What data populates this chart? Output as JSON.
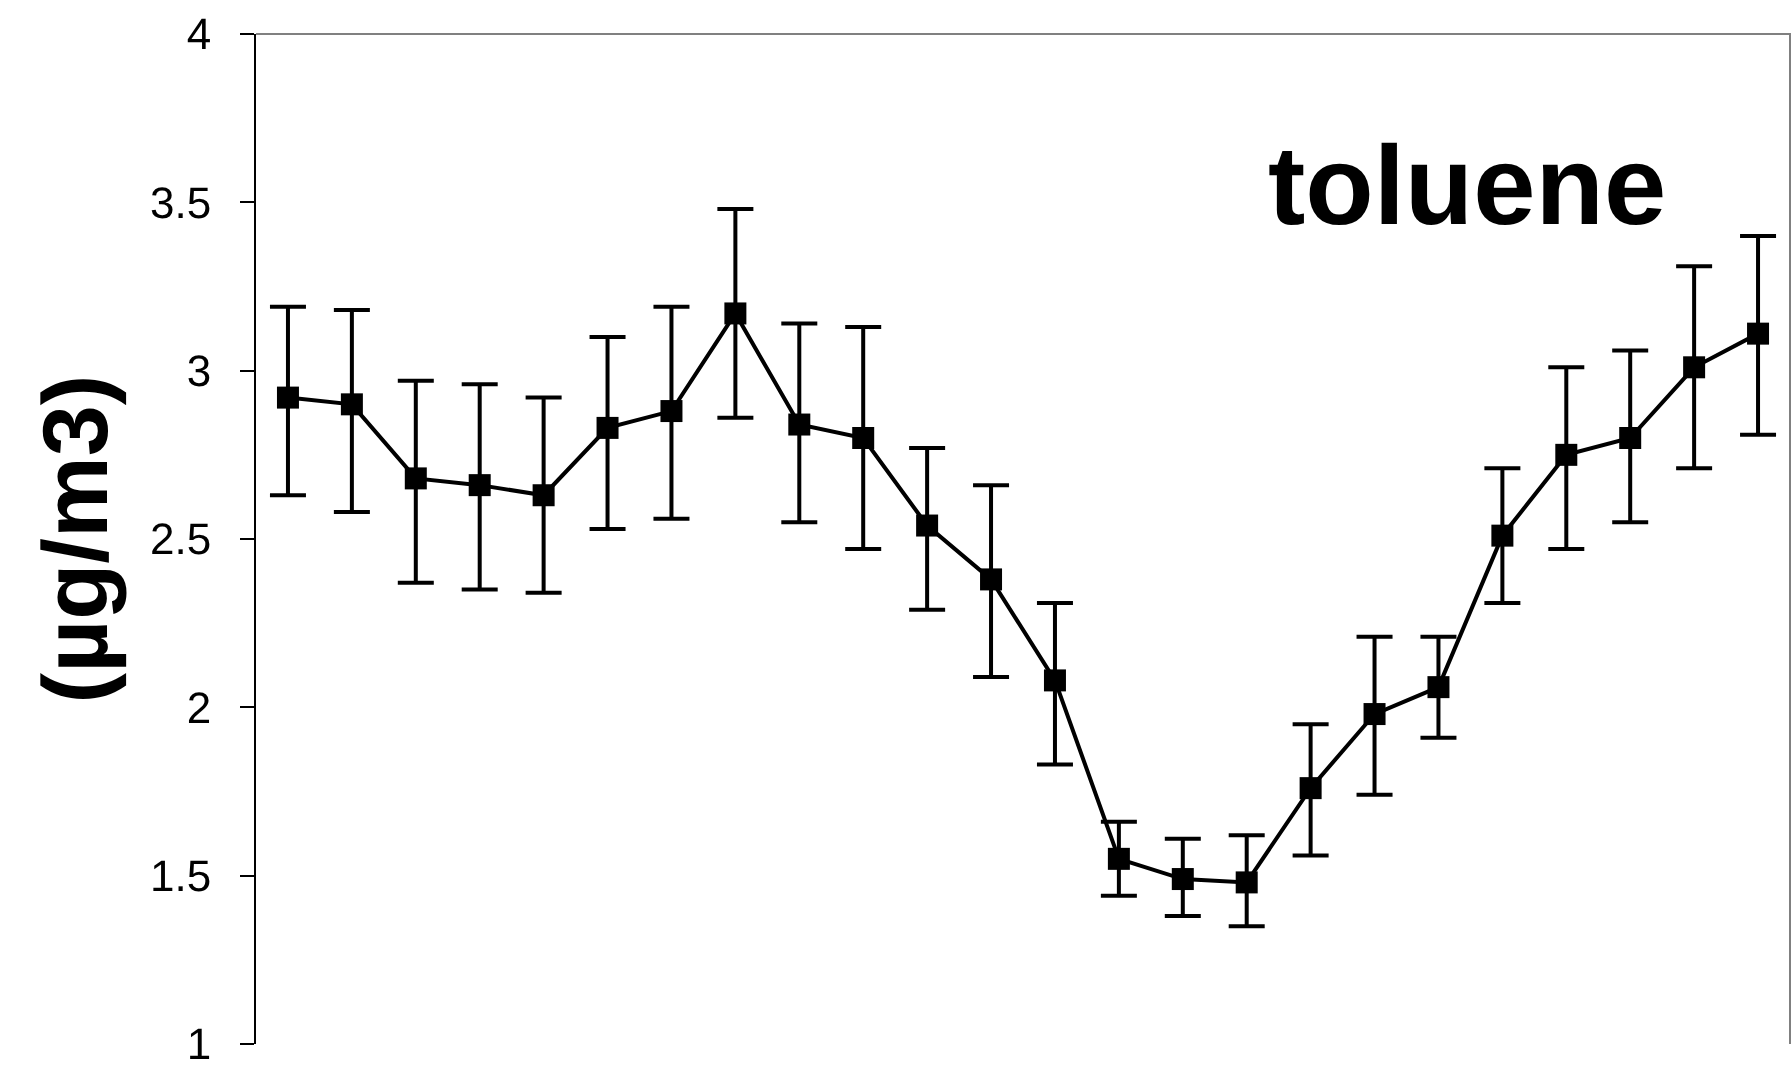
{
  "chart_data": {
    "type": "line",
    "ylabel": "(µg/m3)",
    "annotations": [
      "toluene"
    ],
    "categories": [
      null,
      null,
      null,
      null,
      null,
      null,
      null,
      null,
      null,
      null,
      null,
      null,
      null,
      null,
      null,
      null,
      null,
      null,
      null,
      null,
      null,
      null,
      null,
      null
    ],
    "series": [
      {
        "color": "#000000",
        "values": [
          2.92,
          2.9,
          2.68,
          2.66,
          2.63,
          2.83,
          2.88,
          3.17,
          2.84,
          2.8,
          2.54,
          2.38,
          2.08,
          1.55,
          1.49,
          1.48,
          1.76,
          1.98,
          2.06,
          2.51,
          2.75,
          2.8,
          3.01,
          3.11
        ],
        "errors": [
          [
            2.63,
            3.19
          ],
          [
            2.58,
            3.18
          ],
          [
            2.37,
            2.97
          ],
          [
            2.35,
            2.96
          ],
          [
            2.34,
            2.92
          ],
          [
            2.53,
            3.1
          ],
          [
            2.56,
            3.19
          ],
          [
            2.86,
            3.48
          ],
          [
            2.55,
            3.14
          ],
          [
            2.47,
            3.13
          ],
          [
            2.29,
            2.77
          ],
          [
            2.09,
            2.66
          ],
          [
            1.83,
            2.31
          ],
          [
            1.44,
            1.66
          ],
          [
            1.38,
            1.61
          ],
          [
            1.35,
            1.62
          ],
          [
            1.56,
            1.95
          ],
          [
            1.74,
            2.21
          ],
          [
            1.91,
            2.21
          ],
          [
            2.31,
            2.71
          ],
          [
            2.47,
            3.01
          ],
          [
            2.55,
            3.06
          ],
          [
            2.71,
            3.31
          ],
          [
            2.81,
            3.4
          ]
        ]
      }
    ],
    "ylim": [
      1,
      4
    ],
    "yticks": [
      4,
      3.5,
      3,
      2.5,
      2,
      1.5,
      1
    ],
    "tick_labels": "y",
    "marker": "square",
    "line_style": "solid"
  }
}
